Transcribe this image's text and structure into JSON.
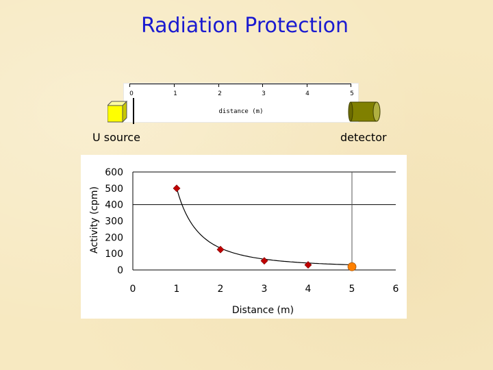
{
  "slide": {
    "title": "Radiation Protection",
    "source_label": "U source",
    "detector_label": "detector"
  },
  "ruler": {
    "title": "distance (m)",
    "ticks": [
      "0",
      "1",
      "2",
      "3",
      "4",
      "5"
    ]
  },
  "icons": {
    "source": "yellow-cube-icon",
    "detector": "olive-cylinder-icon"
  },
  "colors": {
    "title": "#1a1ad0",
    "background": "#f7e9c1",
    "marker": "#c00000",
    "detector_marker": "#ff8000",
    "source_cube": "#ffff00",
    "detector_cylinder": "#808000"
  },
  "chart_data": {
    "type": "scatter",
    "xlabel": "Distance (m)",
    "ylabel": "Activity (cpm)",
    "xlim": [
      0,
      6
    ],
    "ylim": [
      0,
      600
    ],
    "xticks": [
      "0",
      "1",
      "2",
      "3",
      "4",
      "5",
      "6"
    ],
    "yticks": [
      "0",
      "100",
      "200",
      "300",
      "400",
      "500",
      "600"
    ],
    "grid": "horizontal gridlines at 400 and 600; vertical line at x = 5",
    "series": [
      {
        "x": [
          1,
          2,
          3,
          4
        ],
        "y": [
          500,
          125,
          56,
          31
        ],
        "marker": "diamond"
      },
      {
        "x": [
          5
        ],
        "y": [
          20
        ],
        "marker": "circle"
      }
    ],
    "curve": "smooth fitted curve through points from x = 1 to x = 5"
  }
}
